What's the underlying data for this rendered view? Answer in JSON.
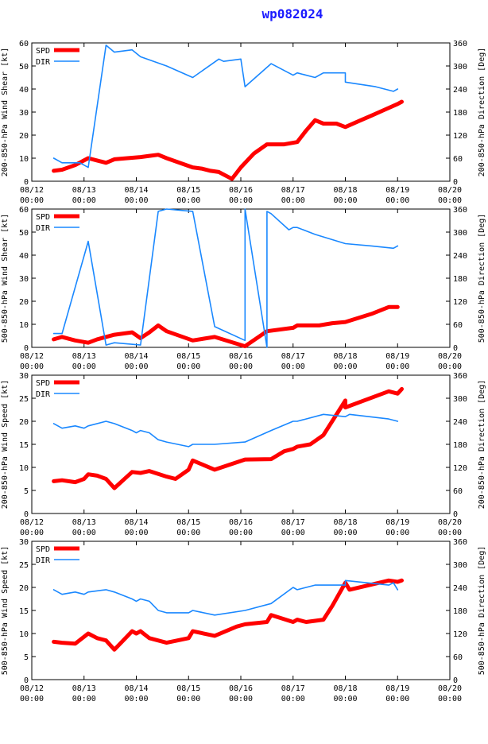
{
  "title": "wp082024",
  "colors": {
    "spd": "#ff0000",
    "dir": "#1a88ff",
    "title": "#1a1aff",
    "axis": "#000000"
  },
  "x_ticks": [
    {
      "day": "08/12",
      "time": "00:00"
    },
    {
      "day": "08/13",
      "time": "00:00"
    },
    {
      "day": "08/14",
      "time": "00:00"
    },
    {
      "day": "08/15",
      "time": "00:00"
    },
    {
      "day": "08/16",
      "time": "00:00"
    },
    {
      "day": "08/17",
      "time": "00:00"
    },
    {
      "day": "08/18",
      "time": "00:00"
    },
    {
      "day": "08/19",
      "time": "00:00"
    },
    {
      "day": "08/20",
      "time": "00:00"
    }
  ],
  "chart_data": [
    {
      "type": "line",
      "ylabel": "200-850-hPa Wind Shear [kt]",
      "y2label": "200-850-hPa Direction [Deg]",
      "xlim": [
        0,
        8
      ],
      "ylim": [
        0,
        60
      ],
      "yticks": [
        0,
        10,
        20,
        30,
        40,
        50,
        60
      ],
      "y2lim": [
        0,
        360
      ],
      "y2ticks": [
        0,
        60,
        120,
        180,
        240,
        300,
        360
      ],
      "legend": [
        {
          "name": "SPD"
        },
        {
          "name": "DIR"
        }
      ],
      "series": [
        {
          "name": "SPD",
          "axis": "left",
          "x": [
            0.42,
            0.58,
            0.83,
            1.08,
            1.25,
            1.42,
            1.58,
            1.83,
            2.08,
            2.25,
            2.42,
            2.58,
            3.08,
            3.25,
            3.42,
            3.58,
            3.83,
            4.0,
            4.25,
            4.5,
            4.58,
            4.83,
            5.08,
            5.25,
            5.42,
            5.58,
            5.83,
            6.0,
            6.25,
            6.5,
            6.75,
            7.0,
            7.08
          ],
          "values": [
            4.5,
            5,
            7,
            10,
            9,
            8,
            9.5,
            10,
            10.5,
            11,
            11.5,
            10,
            6,
            5.5,
            4.5,
            4,
            1,
            6,
            12,
            16,
            16,
            16,
            17,
            22,
            26.5,
            25,
            25,
            23.5,
            26,
            28.5,
            31,
            33.5,
            34.5
          ]
        },
        {
          "name": "DIR",
          "axis": "right",
          "x": [
            0.42,
            0.58,
            0.83,
            0.92,
            1.08,
            1.42,
            1.58,
            1.92,
            2.08,
            2.58,
            3.08,
            3.58,
            3.67,
            4.0,
            4.08,
            4.58,
            5.0,
            5.08,
            5.42,
            5.58,
            6.0,
            6.0,
            6.58,
            6.92,
            7.0
          ],
          "values": [
            60,
            48,
            48,
            48,
            36,
            354,
            336,
            342,
            324,
            300,
            270,
            318,
            312,
            318,
            246,
            306,
            276,
            282,
            270,
            282,
            282,
            258,
            246,
            234,
            240
          ]
        }
      ]
    },
    {
      "type": "line",
      "ylabel": "500-850-hPa Wind Shear [kt]",
      "y2label": "500-850-hPa Direction [Deg]",
      "xlim": [
        0,
        8
      ],
      "ylim": [
        0,
        60
      ],
      "yticks": [
        0,
        10,
        20,
        30,
        40,
        50,
        60
      ],
      "y2lim": [
        0,
        360
      ],
      "y2ticks": [
        0,
        60,
        120,
        180,
        240,
        300,
        360
      ],
      "legend": [
        {
          "name": "SPD"
        },
        {
          "name": "DIR"
        }
      ],
      "series": [
        {
          "name": "SPD",
          "axis": "left",
          "x": [
            0.42,
            0.58,
            0.83,
            1.08,
            1.25,
            1.58,
            1.92,
            2.08,
            2.25,
            2.42,
            2.58,
            3.08,
            3.5,
            4.08,
            4.5,
            5.0,
            5.08,
            5.5,
            5.75,
            6.0,
            6.5,
            6.83,
            7.0
          ],
          "values": [
            3.5,
            4.5,
            3,
            2,
            3.5,
            5.5,
            6.5,
            4,
            6.5,
            9.5,
            7,
            3,
            4.5,
            0.5,
            7,
            8.5,
            9.5,
            9.5,
            10.5,
            11,
            14.5,
            17.5,
            17.5
          ]
        },
        {
          "name": "DIR",
          "axis": "right",
          "x": [
            0.42,
            0.58,
            1.08,
            1.42,
            1.58,
            2.08,
            2.42,
            2.58,
            3.08,
            3.5,
            4.08,
            4.08,
            4.5,
            4.5,
            4.58,
            4.92,
            5.0,
            5.08,
            5.42,
            6.0,
            6.5,
            6.92,
            7.0
          ],
          "values": [
            36,
            36,
            276,
            6,
            12,
            6,
            354,
            360,
            354,
            54,
            18,
            360,
            0,
            354,
            348,
            306,
            312,
            312,
            294,
            270,
            264,
            258,
            264
          ]
        }
      ]
    },
    {
      "type": "line",
      "ylabel": "200-850-hPa Wind Speed [kt]",
      "y2label": "200-850-hPa Direction [Deg]",
      "xlim": [
        0,
        8
      ],
      "ylim": [
        0,
        30
      ],
      "yticks": [
        0,
        5,
        10,
        15,
        20,
        25,
        30
      ],
      "y2lim": [
        0,
        360
      ],
      "y2ticks": [
        0,
        60,
        120,
        180,
        240,
        300,
        360
      ],
      "legend": [
        {
          "name": "SPD"
        },
        {
          "name": "DIR"
        }
      ],
      "series": [
        {
          "name": "SPD",
          "axis": "left",
          "x": [
            0.42,
            0.58,
            0.83,
            1.0,
            1.08,
            1.25,
            1.42,
            1.58,
            1.92,
            2.08,
            2.25,
            2.58,
            2.75,
            3.0,
            3.08,
            3.5,
            4.08,
            4.58,
            4.83,
            5.0,
            5.08,
            5.33,
            5.58,
            6.0,
            6.0,
            6.83,
            7.0,
            7.08
          ],
          "values": [
            7,
            7.2,
            6.8,
            7.5,
            8.5,
            8.2,
            7.5,
            5.5,
            9,
            8.8,
            9.2,
            8,
            7.5,
            9.5,
            11.5,
            9.5,
            11.7,
            11.8,
            13.5,
            14,
            14.5,
            15,
            17,
            24.5,
            23,
            26.5,
            26,
            27
          ]
        },
        {
          "name": "DIR",
          "axis": "right",
          "x": [
            0.42,
            0.58,
            0.83,
            1.0,
            1.08,
            1.42,
            1.58,
            1.92,
            2.0,
            2.08,
            2.25,
            2.42,
            2.58,
            3.0,
            3.08,
            3.5,
            4.08,
            4.58,
            5.0,
            5.08,
            5.58,
            6.0,
            6.08,
            6.83,
            7.0
          ],
          "values": [
            234,
            222,
            228,
            222,
            228,
            240,
            234,
            216,
            210,
            216,
            210,
            192,
            186,
            174,
            180,
            180,
            186,
            216,
            240,
            240,
            258,
            252,
            258,
            246,
            240
          ]
        }
      ]
    },
    {
      "type": "line",
      "ylabel": "500-850-hPa Wind Speed [kt]",
      "y2label": "500-850-hPa Direction [Deg]",
      "xlim": [
        0,
        8
      ],
      "ylim": [
        0,
        30
      ],
      "yticks": [
        0,
        5,
        10,
        15,
        20,
        25,
        30
      ],
      "y2lim": [
        0,
        360
      ],
      "y2ticks": [
        0,
        60,
        120,
        180,
        240,
        300,
        360
      ],
      "legend": [
        {
          "name": "SPD"
        },
        {
          "name": "DIR"
        }
      ],
      "series": [
        {
          "name": "SPD",
          "axis": "left",
          "x": [
            0.42,
            0.58,
            0.83,
            1.08,
            1.25,
            1.42,
            1.58,
            1.92,
            2.0,
            2.08,
            2.25,
            2.58,
            3.0,
            3.08,
            3.5,
            3.92,
            4.08,
            4.5,
            4.58,
            5.0,
            5.08,
            5.25,
            5.58,
            5.75,
            6.0,
            6.08,
            6.83,
            7.0,
            7.08
          ],
          "values": [
            8.2,
            8,
            7.8,
            10,
            9,
            8.5,
            6.5,
            10.5,
            10,
            10.5,
            9,
            8,
            9,
            10.5,
            9.5,
            11.5,
            12,
            12.5,
            14,
            12.5,
            13,
            12.5,
            13,
            16,
            21,
            19.5,
            21.5,
            21.2,
            21.5
          ]
        },
        {
          "name": "DIR",
          "axis": "right",
          "x": [
            0.42,
            0.58,
            0.83,
            1.0,
            1.08,
            1.42,
            1.58,
            1.92,
            2.0,
            2.08,
            2.25,
            2.42,
            2.58,
            3.0,
            3.08,
            3.5,
            4.08,
            4.58,
            5.0,
            5.08,
            5.42,
            6.0,
            6.0,
            6.83,
            6.92,
            7.0
          ],
          "values": [
            234,
            222,
            228,
            222,
            228,
            234,
            228,
            210,
            204,
            210,
            204,
            180,
            174,
            174,
            180,
            168,
            180,
            198,
            240,
            234,
            246,
            246,
            258,
            246,
            252,
            234
          ]
        }
      ]
    }
  ]
}
